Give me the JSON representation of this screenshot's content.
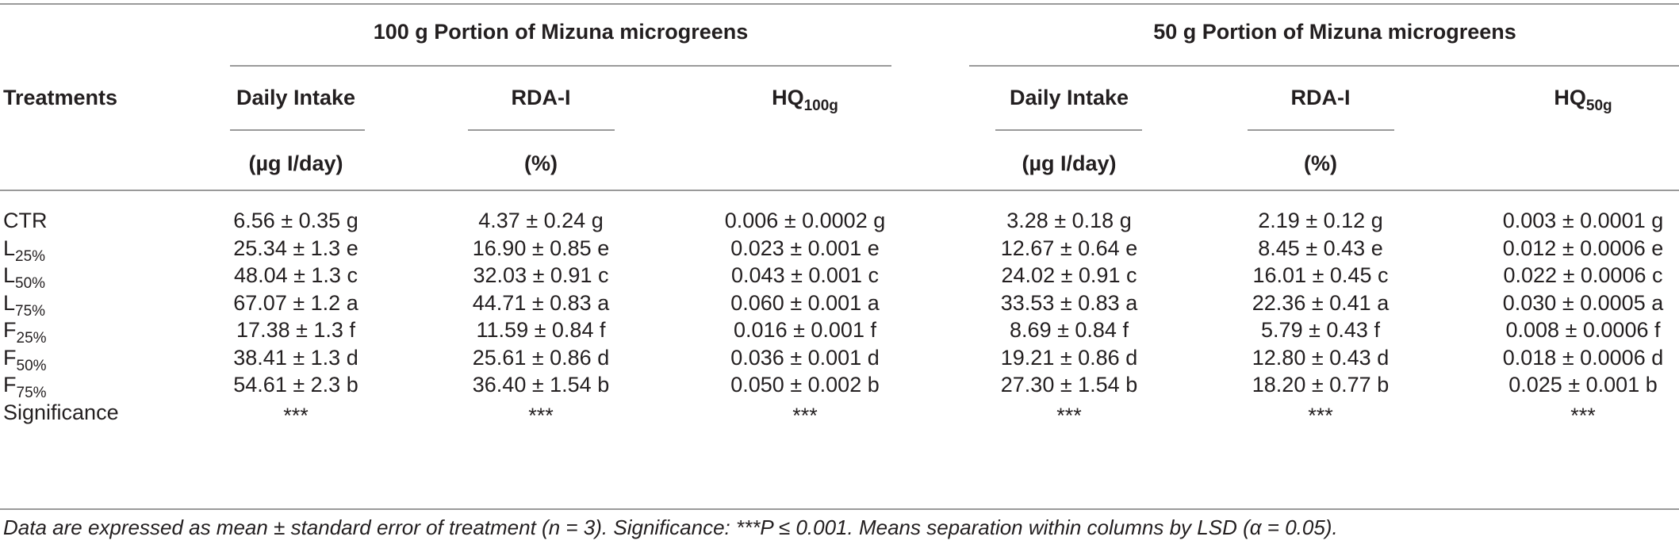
{
  "table": {
    "group_headers": [
      "100 g Portion of Mizuna microgreens",
      "50 g Portion of Mizuna microgreens"
    ],
    "treatments_header": "Treatments",
    "columns": [
      {
        "label": "Daily Intake",
        "unit": "(µg I/day)"
      },
      {
        "label": "RDA-I",
        "unit": "(%)"
      },
      {
        "label": "HQ",
        "sub": "100g",
        "unit": ""
      },
      {
        "label": "Daily Intake",
        "unit": "(µg I/day)"
      },
      {
        "label": "RDA-I",
        "unit": "(%)"
      },
      {
        "label": "HQ",
        "sub": "50g",
        "unit": ""
      }
    ],
    "rows": [
      {
        "name": "CTR",
        "sub": "",
        "cells": [
          "6.56 ± 0.35 g",
          "4.37 ± 0.24 g",
          "0.006 ± 0.0002 g",
          "3.28 ± 0.18 g",
          "2.19 ± 0.12 g",
          "0.003 ± 0.0001 g"
        ]
      },
      {
        "name": "L",
        "sub": "25%",
        "cells": [
          "25.34 ± 1.3 e",
          "16.90 ± 0.85 e",
          "0.023 ± 0.001 e",
          "12.67 ± 0.64 e",
          "8.45 ± 0.43 e",
          "0.012 ± 0.0006 e"
        ]
      },
      {
        "name": "L",
        "sub": "50%",
        "cells": [
          "48.04 ± 1.3 c",
          "32.03 ± 0.91 c",
          "0.043 ± 0.001 c",
          "24.02 ± 0.91 c",
          "16.01 ± 0.45 c",
          "0.022 ± 0.0006 c"
        ]
      },
      {
        "name": "L",
        "sub": "75%",
        "cells": [
          "67.07 ± 1.2 a",
          "44.71 ± 0.83 a",
          "0.060 ± 0.001 a",
          "33.53 ± 0.83 a",
          "22.36 ± 0.41 a",
          "0.030 ± 0.0005 a"
        ]
      },
      {
        "name": "F",
        "sub": "25%",
        "cells": [
          "17.38 ± 1.3 f",
          "11.59 ± 0.84 f",
          "0.016 ± 0.001 f",
          "8.69 ± 0.84 f",
          "5.79 ± 0.43 f",
          "0.008 ± 0.0006 f"
        ]
      },
      {
        "name": "F",
        "sub": "50%",
        "cells": [
          "38.41 ± 1.3 d",
          "25.61 ± 0.86 d",
          "0.036 ± 0.001 d",
          "19.21 ± 0.86 d",
          "12.80 ± 0.43 d",
          "0.018 ± 0.0006 d"
        ]
      },
      {
        "name": "F",
        "sub": "75%",
        "cells": [
          "54.61 ± 2.3 b",
          "36.40 ± 1.54 b",
          "0.050 ± 0.002 b",
          "27.30 ± 1.54 b",
          "18.20 ± 0.77 b",
          "0.025 ± 0.001 b"
        ]
      },
      {
        "name": "Significance",
        "sub": "",
        "cells": [
          "***",
          "***",
          "***",
          "***",
          "***",
          "***"
        ]
      }
    ],
    "footnote": "Data are expressed as mean ± standard error of treatment (n = 3). Significance: ***P ≤ 0.001. Means separation within columns by LSD (α = 0.05)."
  }
}
